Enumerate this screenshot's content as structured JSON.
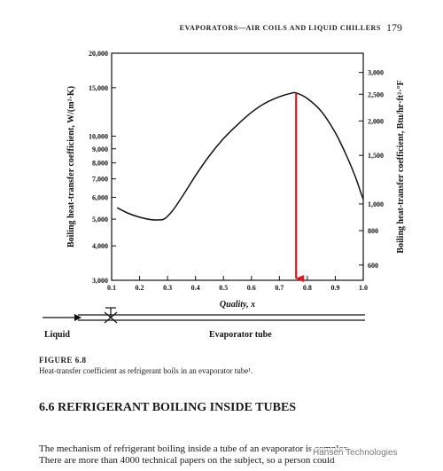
{
  "header": {
    "running_head": "EVAPORATORS—AIR COILS AND LIQUID CHILLERS",
    "page_number": "179"
  },
  "figure": {
    "label": "FIGURE 6.8",
    "caption": "Heat-transfer coefficient as refrigerant boils in an evaporator tube¹.",
    "liquid_label": "Liquid",
    "tube_label": "Evaporator tube",
    "arrow_color": "#e0161b"
  },
  "chart_data": {
    "type": "line",
    "xlabel": "Quality, x",
    "ylabel_left": "Boiling heat-transfer coefficient, W/(m²·K)",
    "ylabel_right": "Boiling heat-transfer coefficient, Btu/hr·ft²·°F",
    "xlim": [
      0.1,
      1.0
    ],
    "ylim": [
      3000,
      20000
    ],
    "y_scale": "log",
    "x_ticks": [
      "0.1",
      "0.2",
      "0.3",
      "0.4",
      "0.5",
      "0.6",
      "0.7",
      "0.8",
      "0.9",
      "1.0"
    ],
    "y_ticks_left": [
      "3,000",
      "4,000",
      "5,000",
      "6,000",
      "7,000",
      "8,000",
      "9,000",
      "10,000",
      "15,000",
      "20,000"
    ],
    "y_ticks_right": [
      "600",
      "800",
      "1,000",
      "1,500",
      "2,000",
      "2,500",
      "3,000"
    ],
    "series": [
      {
        "x": [
          0.12,
          0.16,
          0.2,
          0.24,
          0.27,
          0.29,
          0.32,
          0.36,
          0.4,
          0.45,
          0.5,
          0.55,
          0.6,
          0.65,
          0.7,
          0.74,
          0.76,
          0.8,
          0.85,
          0.9,
          0.94,
          0.97,
          0.99,
          1.0
        ],
        "y": [
          5500,
          5250,
          5080,
          4980,
          4970,
          5020,
          5400,
          6200,
          7200,
          8500,
          9800,
          11000,
          12200,
          13200,
          13900,
          14300,
          14350,
          13700,
          12300,
          10300,
          8500,
          7200,
          6300,
          5900
        ]
      }
    ],
    "annotation": {
      "type": "arrow",
      "x": 0.76,
      "from_y": 14300,
      "to_y": 3000
    }
  },
  "section": {
    "title": "6.6 REFRIGERANT BOILING INSIDE TUBES"
  },
  "body": {
    "line1": "The mechanism of refrigerant boiling inside a tube of an evaporator is complex.",
    "line2": "There are more than 4000 technical papers on the subject, so a person could"
  },
  "watermark": "Hansen Technologies"
}
